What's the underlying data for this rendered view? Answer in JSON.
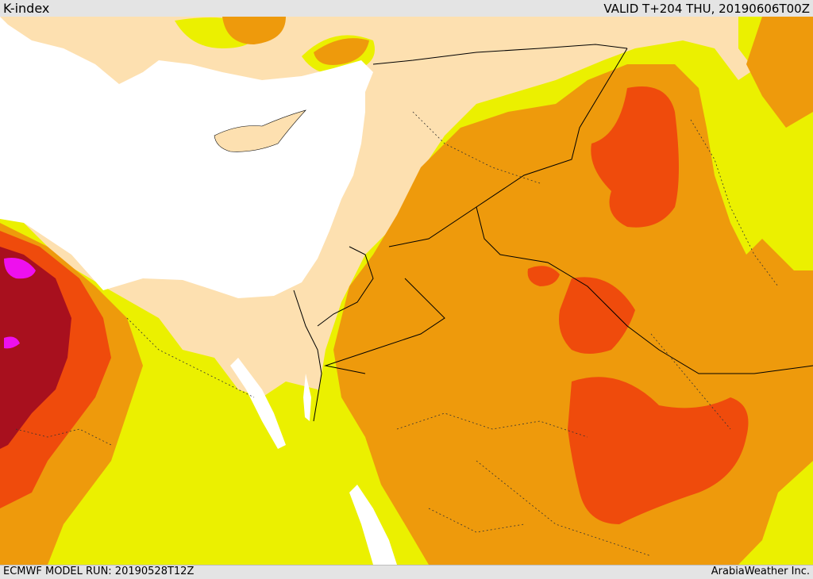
{
  "header": {
    "title": "K-index",
    "valid_time": "VALID T+204 THU, 20190606T00Z"
  },
  "footer": {
    "model_run": "ECMWF MODEL RUN: 20190528T12Z",
    "credit": "ArabiaWeather Inc."
  },
  "colors": {
    "sea": "#ffffff",
    "land_low": "#fde0b0",
    "yellow": "#ebf000",
    "orange": "#ee9a0c",
    "red_orange": "#ef4b0c",
    "dark_red": "#a8101e",
    "magenta": "#ee10ee",
    "borders": "#000000"
  }
}
